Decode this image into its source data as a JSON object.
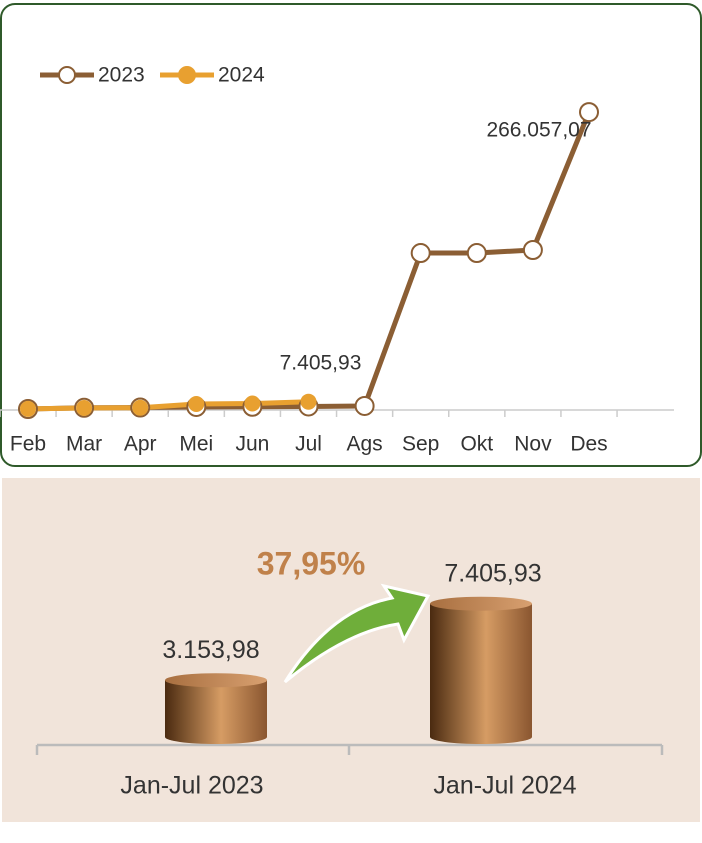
{
  "chart_data": [
    {
      "type": "line",
      "categories": [
        "Feb",
        "Mar",
        "Apr",
        "Mei",
        "Jun",
        "Jul",
        "Ags",
        "Sep",
        "Okt",
        "Nov",
        "Des"
      ],
      "series": [
        {
          "name": "2023",
          "color": "#8B5E34",
          "values": [
            900,
            2000,
            2200,
            2700,
            2900,
            3153.98,
            3600,
            140200,
            140200,
            142900,
            266057.07
          ],
          "value_labels": [
            null,
            null,
            null,
            null,
            null,
            null,
            null,
            null,
            null,
            null,
            "266.057,07"
          ]
        },
        {
          "name": "2024",
          "color": "#E8A030",
          "values": [
            1000,
            1800,
            2000,
            5400,
            5800,
            7405.93,
            null,
            null,
            null,
            null,
            null
          ],
          "value_labels": [
            null,
            null,
            null,
            null,
            null,
            "7.405,93",
            null,
            null,
            null,
            null,
            null
          ]
        }
      ],
      "ylim": [
        0,
        280000
      ],
      "legend": "top-left",
      "grid": false
    },
    {
      "type": "cylinder",
      "categories": [
        "Jan-Jul 2023",
        "Jan-Jul 2024"
      ],
      "values": [
        3153.98,
        7405.93
      ],
      "value_labels": [
        "3.153,98",
        "7.405,93"
      ],
      "annotation": "37,95%",
      "ylim": [
        0,
        8000
      ]
    }
  ]
}
